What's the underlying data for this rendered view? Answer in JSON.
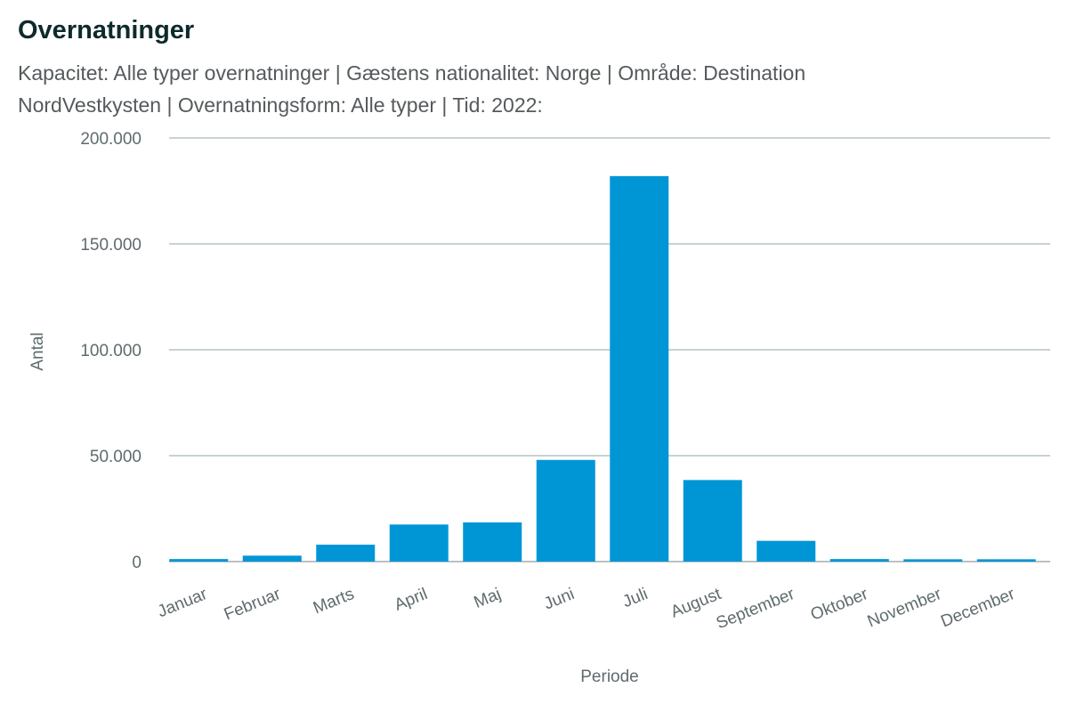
{
  "chart_data": {
    "type": "bar",
    "title": "Overnatninger",
    "subtitle": "Kapacitet: Alle typer overnatninger | Gæstens nationalitet: Norge | Område: Destination NordVestkysten | Overnatningsform: Alle typer | Tid: 2022:",
    "xlabel": "Periode",
    "ylabel": "Antal",
    "categories": [
      "Januar",
      "Februar",
      "Marts",
      "April",
      "Maj",
      "Juni",
      "Juli",
      "August",
      "September",
      "Oktober",
      "November",
      "December"
    ],
    "series": [
      {
        "values": [
          1200,
          2800,
          8000,
          17500,
          18500,
          48000,
          182000,
          38500,
          9800,
          1200,
          1100,
          1100
        ]
      }
    ],
    "ylim": [
      0,
      200000
    ],
    "yticks": [
      0,
      50000,
      100000,
      150000,
      200000
    ],
    "ytick_labels": [
      "0",
      "50.000",
      "100.000",
      "150.000",
      "200.000"
    ],
    "bar_color": "#0096d6",
    "grid": true,
    "legend": "none"
  }
}
